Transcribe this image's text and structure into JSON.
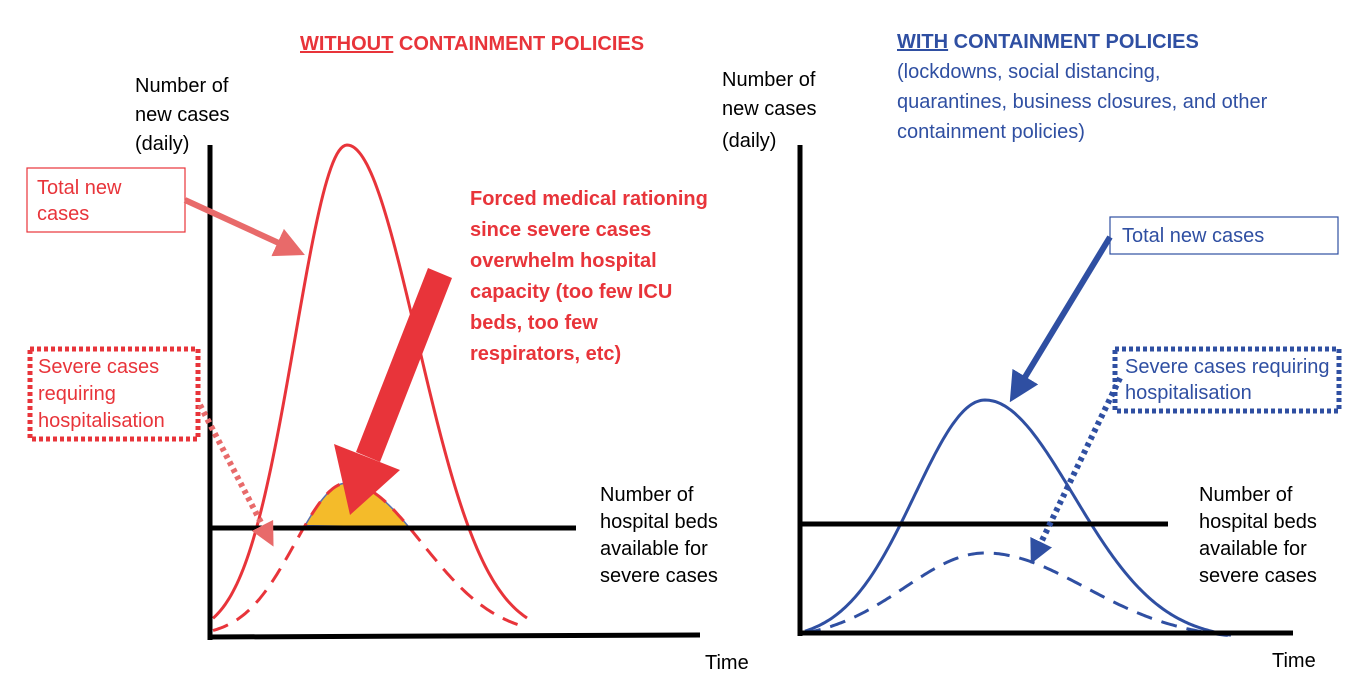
{
  "left": {
    "title_underlined": "WITHOUT",
    "title_rest": "CONTAINMENT POLICIES",
    "y_label": [
      "Number of",
      "new cases",
      "(daily)"
    ],
    "x_label": "Time",
    "total_label": [
      "Total new",
      "cases"
    ],
    "severe_label": [
      "Severe cases",
      "requiring",
      "hospitalisation"
    ],
    "rationing_label": [
      "Forced medical rationing",
      "since severe cases",
      "overwhelm hospital",
      "capacity (too few ICU",
      "beds, too few",
      "respirators, etc)"
    ],
    "beds_label": [
      "Number of",
      "hospital beds",
      "available for",
      "severe cases"
    ]
  },
  "right": {
    "title_underlined": "WITH",
    "title_rest": "CONTAINMENT POLICIES",
    "subtitle": [
      "(lockdowns, social distancing,",
      "quarantines, business closures, and other",
      "containment policies)"
    ],
    "y_label": [
      "Number of",
      "new cases",
      "(daily)"
    ],
    "x_label": "Time",
    "total_label": [
      "Total new cases"
    ],
    "severe_label": [
      "Severe cases requiring",
      "hospitalisation"
    ],
    "beds_label": [
      "Number of",
      "hospital beds",
      "available for",
      "severe cases"
    ]
  }
}
